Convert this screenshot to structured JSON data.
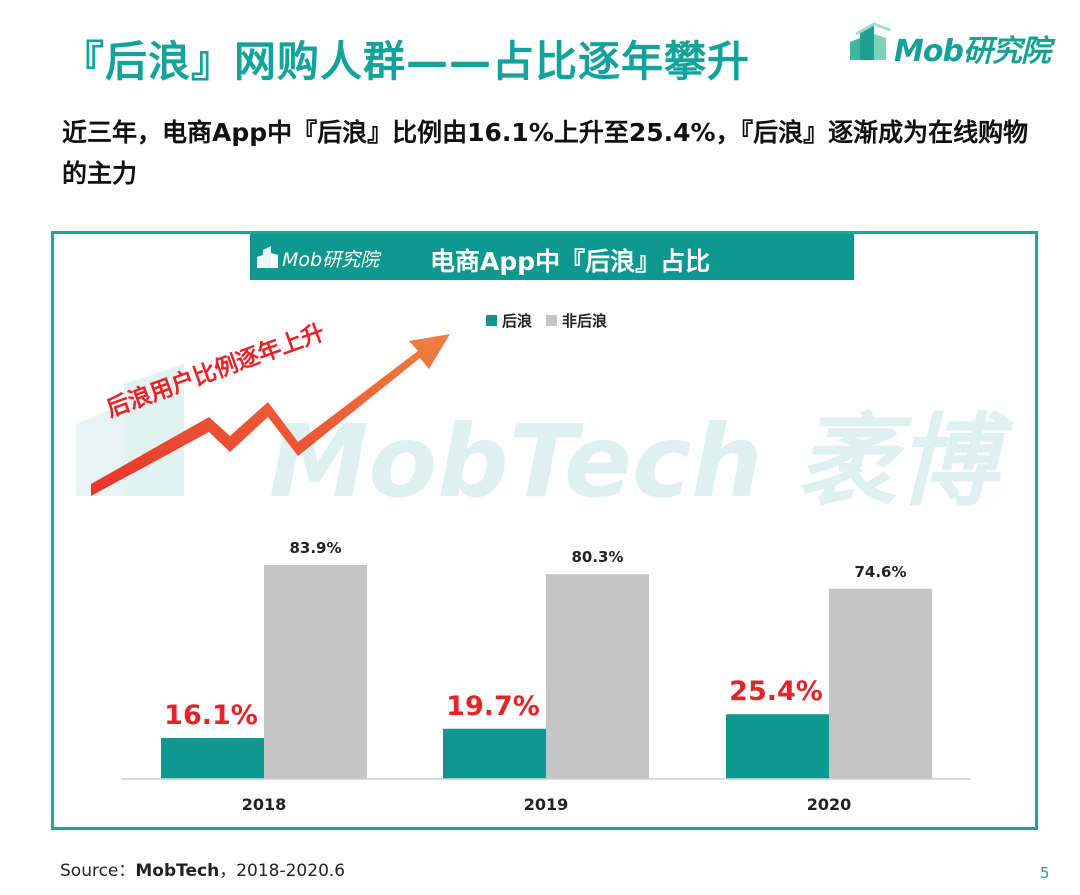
{
  "header": {
    "title": "『后浪』网购人群——占比逐年攀升",
    "brand": "Mob研究院"
  },
  "subtitle": "近三年，电商App中『后浪』比例由16.1%上升至25.4%，『后浪』逐渐成为在线购物的主力",
  "chart_panel": {
    "logo": "Mob研究院",
    "watermark": "MobTech 袤博",
    "annotation": "后浪用户比例逐年上升"
  },
  "chart_data": {
    "type": "bar",
    "title": "电商App中『后浪』占比",
    "categories": [
      "2018",
      "2019",
      "2020"
    ],
    "series": [
      {
        "name": "后浪",
        "values": [
          16.1,
          19.7,
          25.4
        ],
        "labels": [
          "16.1%",
          "19.7%",
          "25.4%"
        ],
        "color": "#0f9890",
        "label_color": "#e5242a"
      },
      {
        "name": "非后浪",
        "values": [
          83.9,
          80.3,
          74.6
        ],
        "labels": [
          "83.9%",
          "80.3%",
          "74.6%"
        ],
        "color": "#c4c4c4",
        "label_color": "#222222"
      }
    ],
    "xlabel": "",
    "ylabel": "",
    "ylim": [
      0,
      100
    ],
    "grid": false,
    "legend": "top-center"
  },
  "footer": {
    "source_prefix": "Source：",
    "source_name": "MobTech",
    "source_suffix": "，2018-2020.6",
    "page_number": "5"
  },
  "colors": {
    "accent": "#13a39a",
    "arrow": "#e8322b",
    "arrow_tip": "#f0743a"
  }
}
